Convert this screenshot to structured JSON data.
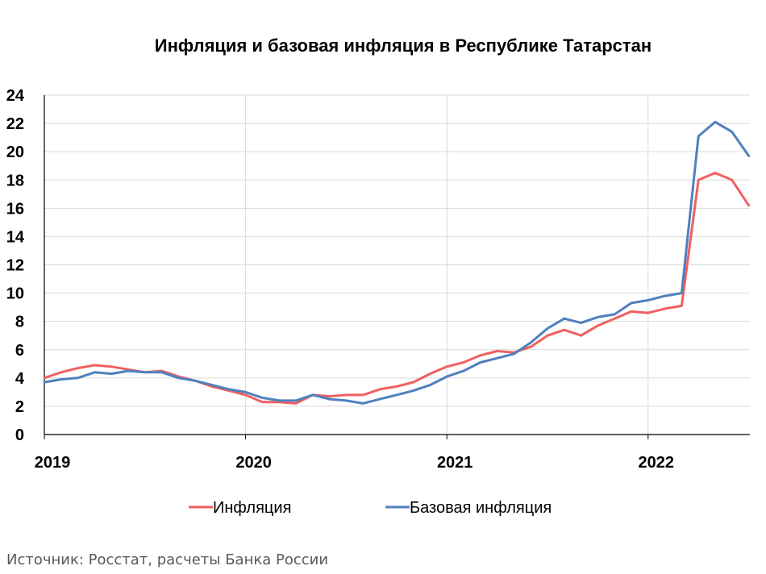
{
  "chart_data": {
    "type": "line",
    "title": "Инфляция и базовая инфляция в Республике Татарстан",
    "xlabel": "",
    "ylabel": "",
    "x_tick_labels": [
      "2019",
      "2020",
      "2021",
      "2022"
    ],
    "y_tick_labels": [
      "0",
      "2",
      "4",
      "6",
      "8",
      "10",
      "12",
      "14",
      "16",
      "18",
      "20",
      "22",
      "24"
    ],
    "ylim": [
      0,
      24
    ],
    "grid": true,
    "legend_position": "bottom",
    "x_start": "2019-01",
    "series": [
      {
        "name": "Инфляция",
        "color": "#f06060",
        "values": [
          4.0,
          4.4,
          4.7,
          4.9,
          4.8,
          4.6,
          4.4,
          4.5,
          4.1,
          3.8,
          3.4,
          3.1,
          2.8,
          2.3,
          2.3,
          2.2,
          2.8,
          2.7,
          2.8,
          2.8,
          3.2,
          3.4,
          3.7,
          4.3,
          4.8,
          5.1,
          5.6,
          5.9,
          5.8,
          6.2,
          7.0,
          7.4,
          7.0,
          7.7,
          8.2,
          8.7,
          8.6,
          8.9,
          9.1,
          18.0,
          18.5,
          18.0,
          16.2
        ]
      },
      {
        "name": "Базовая инфляция",
        "color": "#4f81bd",
        "values": [
          3.7,
          3.9,
          4.0,
          4.4,
          4.3,
          4.5,
          4.4,
          4.4,
          4.0,
          3.8,
          3.5,
          3.2,
          3.0,
          2.6,
          2.4,
          2.4,
          2.8,
          2.5,
          2.4,
          2.2,
          2.5,
          2.8,
          3.1,
          3.5,
          4.1,
          4.5,
          5.1,
          5.4,
          5.7,
          6.5,
          7.5,
          8.2,
          7.9,
          8.3,
          8.5,
          9.3,
          9.5,
          9.8,
          10.0,
          21.1,
          22.1,
          21.4,
          19.7
        ]
      }
    ]
  },
  "source_note": "Источник: Росстат, расчеты Банка России"
}
